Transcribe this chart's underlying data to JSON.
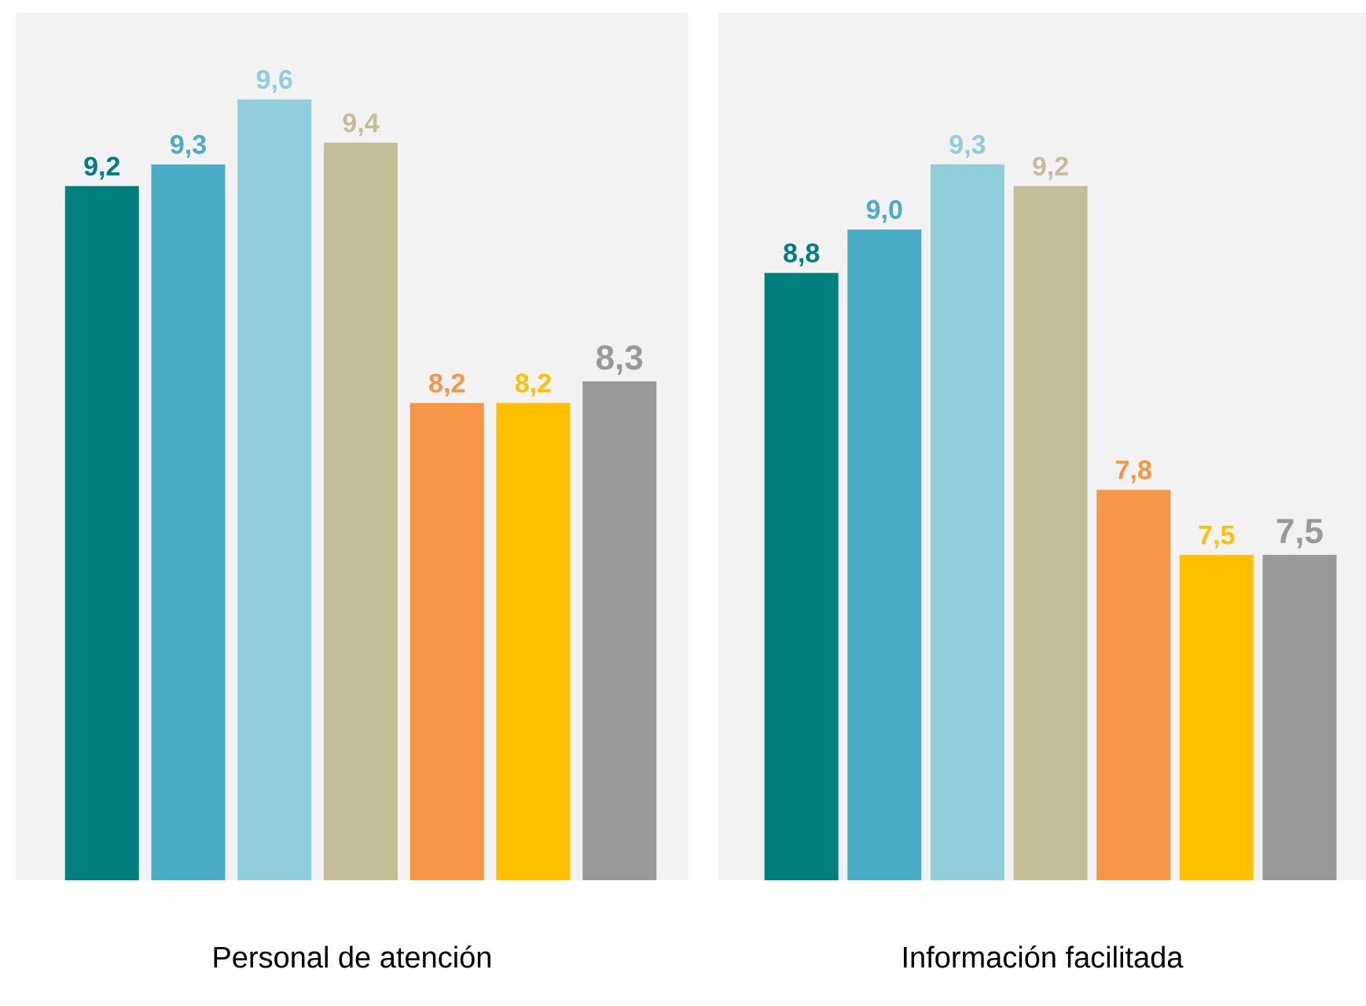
{
  "chart_data": [
    {
      "type": "bar",
      "xlabel": "Personal de atención",
      "categories": [
        null,
        null,
        null,
        null,
        null,
        null,
        null
      ],
      "values": [
        9.2,
        9.3,
        9.6,
        9.4,
        8.2,
        8.2,
        8.3
      ],
      "value_labels": [
        "9,2",
        "9,3",
        "9,6",
        "9,4",
        "8,2",
        "8,2",
        "8,3"
      ],
      "colors": [
        "#007f7f",
        "#4bacc6",
        "#92cddc",
        "#c4bd97",
        "#f79646",
        "#ffc000",
        "#999999"
      ],
      "ylim": [
        6,
        10
      ],
      "tick_labels": false
    },
    {
      "type": "bar",
      "xlabel": "Información facilitada",
      "categories": [
        null,
        null,
        null,
        null,
        null,
        null,
        null
      ],
      "values": [
        8.8,
        9.0,
        9.3,
        9.2,
        7.8,
        7.5,
        7.5
      ],
      "value_labels": [
        "8,8",
        "9,0",
        "9,3",
        "9,2",
        "7,8",
        "7,5",
        "7,5"
      ],
      "colors": [
        "#007f7f",
        "#4bacc6",
        "#92cddc",
        "#c4bd97",
        "#f79646",
        "#ffc000",
        "#999999"
      ],
      "ylim": [
        6,
        10
      ],
      "tick_labels": false
    }
  ]
}
